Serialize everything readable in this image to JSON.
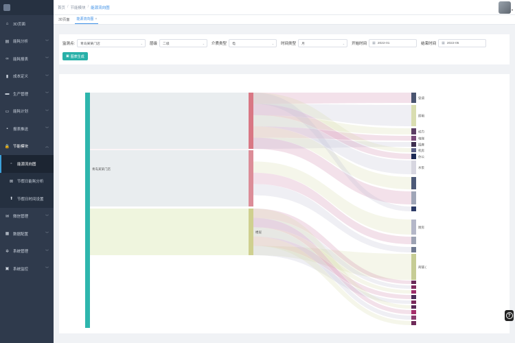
{
  "sidebar": {
    "brand_title": "",
    "items": [
      {
        "label": "3D页面",
        "icon": "home-icon",
        "glyph": "⌂"
      },
      {
        "label": "能耗分析",
        "icon": "chart-icon",
        "glyph": "▤",
        "arrow": true
      },
      {
        "label": "能耗报表",
        "icon": "link-icon",
        "glyph": "∞",
        "arrow": true
      },
      {
        "label": "成本定义",
        "icon": "document-icon",
        "glyph": "▮",
        "arrow": true
      },
      {
        "label": "生产管理",
        "icon": "factory-icon",
        "glyph": "▬",
        "arrow": true
      },
      {
        "label": "能耗计划",
        "icon": "calendar-icon",
        "glyph": "▭",
        "arrow": true
      },
      {
        "label": "报表推送",
        "icon": "message-icon",
        "glyph": "▪",
        "arrow": true
      },
      {
        "label": "节能模块",
        "icon": "lock-icon",
        "glyph": "🔒",
        "arrow": true,
        "open": true
      }
    ],
    "sub_items": [
      {
        "label": "能源流向图",
        "icon": "flow-icon",
        "glyph": "▫",
        "active": true
      },
      {
        "label": "节假日能耗分析",
        "icon": "grid-icon",
        "glyph": "⊠"
      },
      {
        "label": "节假日时间设置",
        "icon": "upload-icon",
        "glyph": "⬆"
      }
    ],
    "items_after": [
      {
        "label": "微信管理",
        "icon": "wechat-icon",
        "glyph": "✉",
        "arrow": true
      },
      {
        "label": "数据配置",
        "icon": "database-icon",
        "glyph": "▦",
        "arrow": true
      },
      {
        "label": "系统管理",
        "icon": "gear-icon",
        "glyph": "✲",
        "arrow": true
      },
      {
        "label": "系统监控",
        "icon": "monitor-icon",
        "glyph": "▣",
        "arrow": true
      }
    ]
  },
  "header": {
    "breadcrumb": [
      "首页",
      "节能模块",
      "能源流向图"
    ]
  },
  "tabs": [
    {
      "label": "3D页面",
      "active": false
    },
    {
      "label": "能源流向图",
      "active": true,
      "close": "×"
    }
  ],
  "filters": {
    "measure_point": {
      "label": "监测点:",
      "value": "青岛某某门店"
    },
    "level": {
      "label": "层级",
      "value": "二级"
    },
    "medium": {
      "label": "介质类型",
      "value": "电"
    },
    "time_type": {
      "label": "时间类型",
      "value": "月"
    },
    "start_time": {
      "label": "开始时间",
      "value": "2022-01"
    },
    "end_time": {
      "label": "结束时间",
      "value": "2022-05"
    },
    "generate_button": "图表生成"
  },
  "sankey": {
    "source_label": "青岛某某门店",
    "mid_labels": [
      "",
      "",
      "楼层"
    ],
    "target_labels": [
      "空调",
      "照明",
      "动力",
      "电梯",
      "插座",
      "机房",
      "办公",
      "水泵",
      "",
      "",
      "",
      "厨房",
      "",
      "",
      "商铺 (",
      "",
      "",
      "",
      "",
      "",
      "",
      "",
      "",
      ""
    ],
    "colors": {
      "source": "#2eb6ad",
      "mid": [
        "#d9727f",
        "#e0a1aa",
        "#c9cd8a"
      ],
      "accent": "#3a8ee6"
    }
  }
}
